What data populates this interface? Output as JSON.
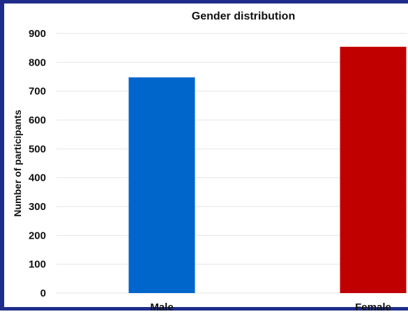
{
  "chart_data": {
    "type": "bar",
    "title": "Gender distribution",
    "xlabel": "",
    "ylabel": "Number of participants",
    "categories": [
      "Male",
      "Female"
    ],
    "values": [
      748,
      854
    ],
    "colors": [
      "#0066cc",
      "#c00000"
    ],
    "ylim": [
      0,
      900
    ],
    "yticks": [
      0,
      100,
      200,
      300,
      400,
      500,
      600,
      700,
      800,
      900
    ],
    "grid": true,
    "legend": "none"
  }
}
